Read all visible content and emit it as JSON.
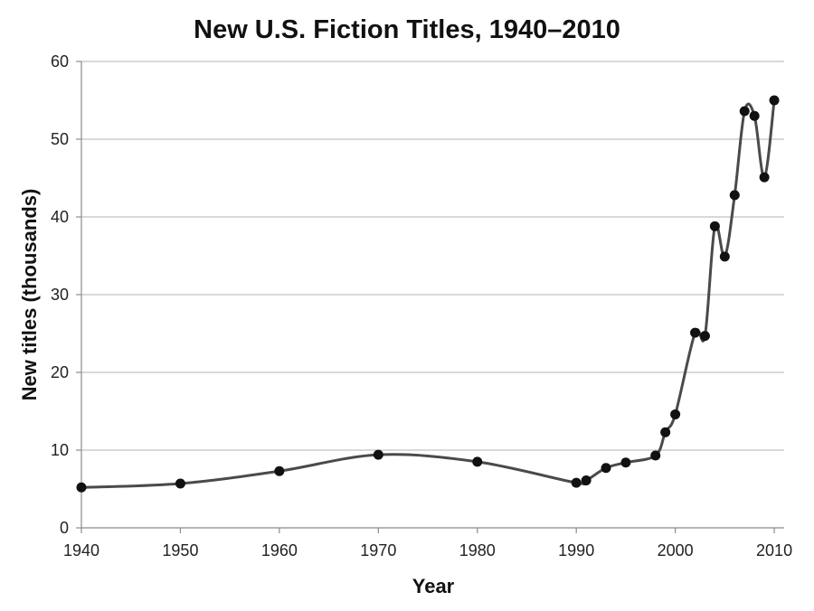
{
  "chart_data": {
    "type": "line",
    "title": "New U.S. Fiction Titles, 1940–2010",
    "xlabel": "Year",
    "ylabel": "New titles (thousands)",
    "xlim": [
      1940,
      2011
    ],
    "ylim": [
      0,
      60
    ],
    "x_ticks": [
      1940,
      1950,
      1960,
      1970,
      1980,
      1990,
      2000,
      2010
    ],
    "y_ticks": [
      0,
      10,
      20,
      30,
      40,
      50,
      60
    ],
    "grid": "horizontal",
    "colors": {
      "line": "#4a4a4a",
      "points": "#111111",
      "grid": "#b3b3b3"
    },
    "series": [
      {
        "x": [
          1940,
          1950,
          1960,
          1970,
          1980,
          1990,
          1991,
          1993,
          1995,
          1998,
          1999,
          2000,
          2002,
          2003,
          2004,
          2005,
          2006,
          2007,
          2008,
          2009,
          2010
        ],
        "y": [
          5.2,
          5.7,
          7.3,
          9.4,
          8.5,
          5.8,
          6.1,
          7.7,
          8.4,
          9.3,
          12.3,
          14.6,
          25.1,
          24.7,
          38.8,
          34.9,
          42.8,
          53.6,
          53.0,
          45.1,
          55.0
        ]
      }
    ]
  }
}
